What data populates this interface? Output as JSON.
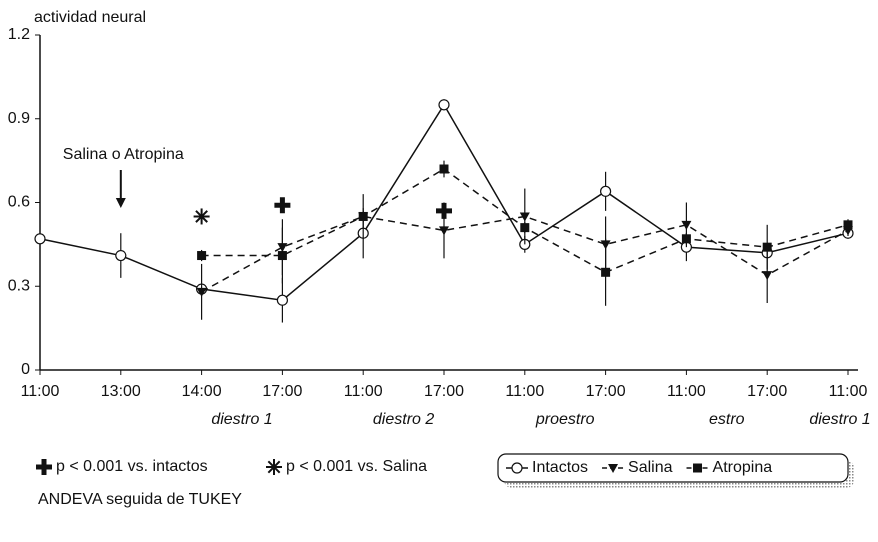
{
  "chart_data": {
    "type": "line",
    "y_label": "actividad neural",
    "categories": [
      "11:00",
      "13:00",
      "14:00",
      "17:00",
      "11:00",
      "17:00",
      "11:00",
      "17:00",
      "11:00",
      "17:00",
      "11:00"
    ],
    "phases": [
      "diestro 1",
      "diestro 2",
      "proestro",
      "estro",
      "diestro 1"
    ],
    "ylim": [
      0,
      1.2
    ],
    "yticks": [
      0,
      0.3,
      0.6,
      0.9,
      1.2
    ],
    "series": [
      {
        "name": "Intactos",
        "color": "#111111",
        "marker": "circle",
        "dash": false,
        "values": [
          0.47,
          0.41,
          0.29,
          0.25,
          0.49,
          0.95,
          0.45,
          0.64,
          0.44,
          0.42,
          0.49
        ],
        "errors": [
          0.02,
          0.08,
          0.02,
          0.08,
          0.09,
          0.02,
          0.03,
          0.07,
          0.05,
          0.02,
          0.02
        ]
      },
      {
        "name": "Salina",
        "color": "#111111",
        "marker": "triangle",
        "dash": true,
        "values": [
          null,
          null,
          0.28,
          0.44,
          0.55,
          0.5,
          0.55,
          0.45,
          0.52,
          0.34,
          0.5
        ],
        "errors": [
          null,
          null,
          0.1,
          0.1,
          0.08,
          0.1,
          0.1,
          0.1,
          0.08,
          0.1,
          0.02
        ]
      },
      {
        "name": "Atropina",
        "color": "#111111",
        "marker": "square",
        "dash": true,
        "values": [
          null,
          null,
          0.41,
          0.41,
          0.55,
          0.72,
          0.51,
          0.35,
          0.47,
          0.44,
          0.52
        ],
        "errors": [
          null,
          null,
          0.02,
          0.1,
          0.02,
          0.03,
          0.02,
          0.12,
          0.02,
          0.08,
          0.02
        ]
      }
    ],
    "annotation": {
      "text": "Salina o Atropina",
      "category_index": 1
    },
    "significance": [
      {
        "symbol": "asterisk",
        "category_index": 2,
        "value": 0.55
      },
      {
        "symbol": "plus",
        "category_index": 3,
        "value": 0.59
      },
      {
        "symbol": "plus",
        "category_index": 5,
        "value": 0.57
      }
    ],
    "footnotes": [
      "p < 0.001 vs. intactos",
      "p < 0.001 vs. Salina",
      "ANDEVA  seguida de TUKEY"
    ],
    "legend": "bottom-right"
  }
}
